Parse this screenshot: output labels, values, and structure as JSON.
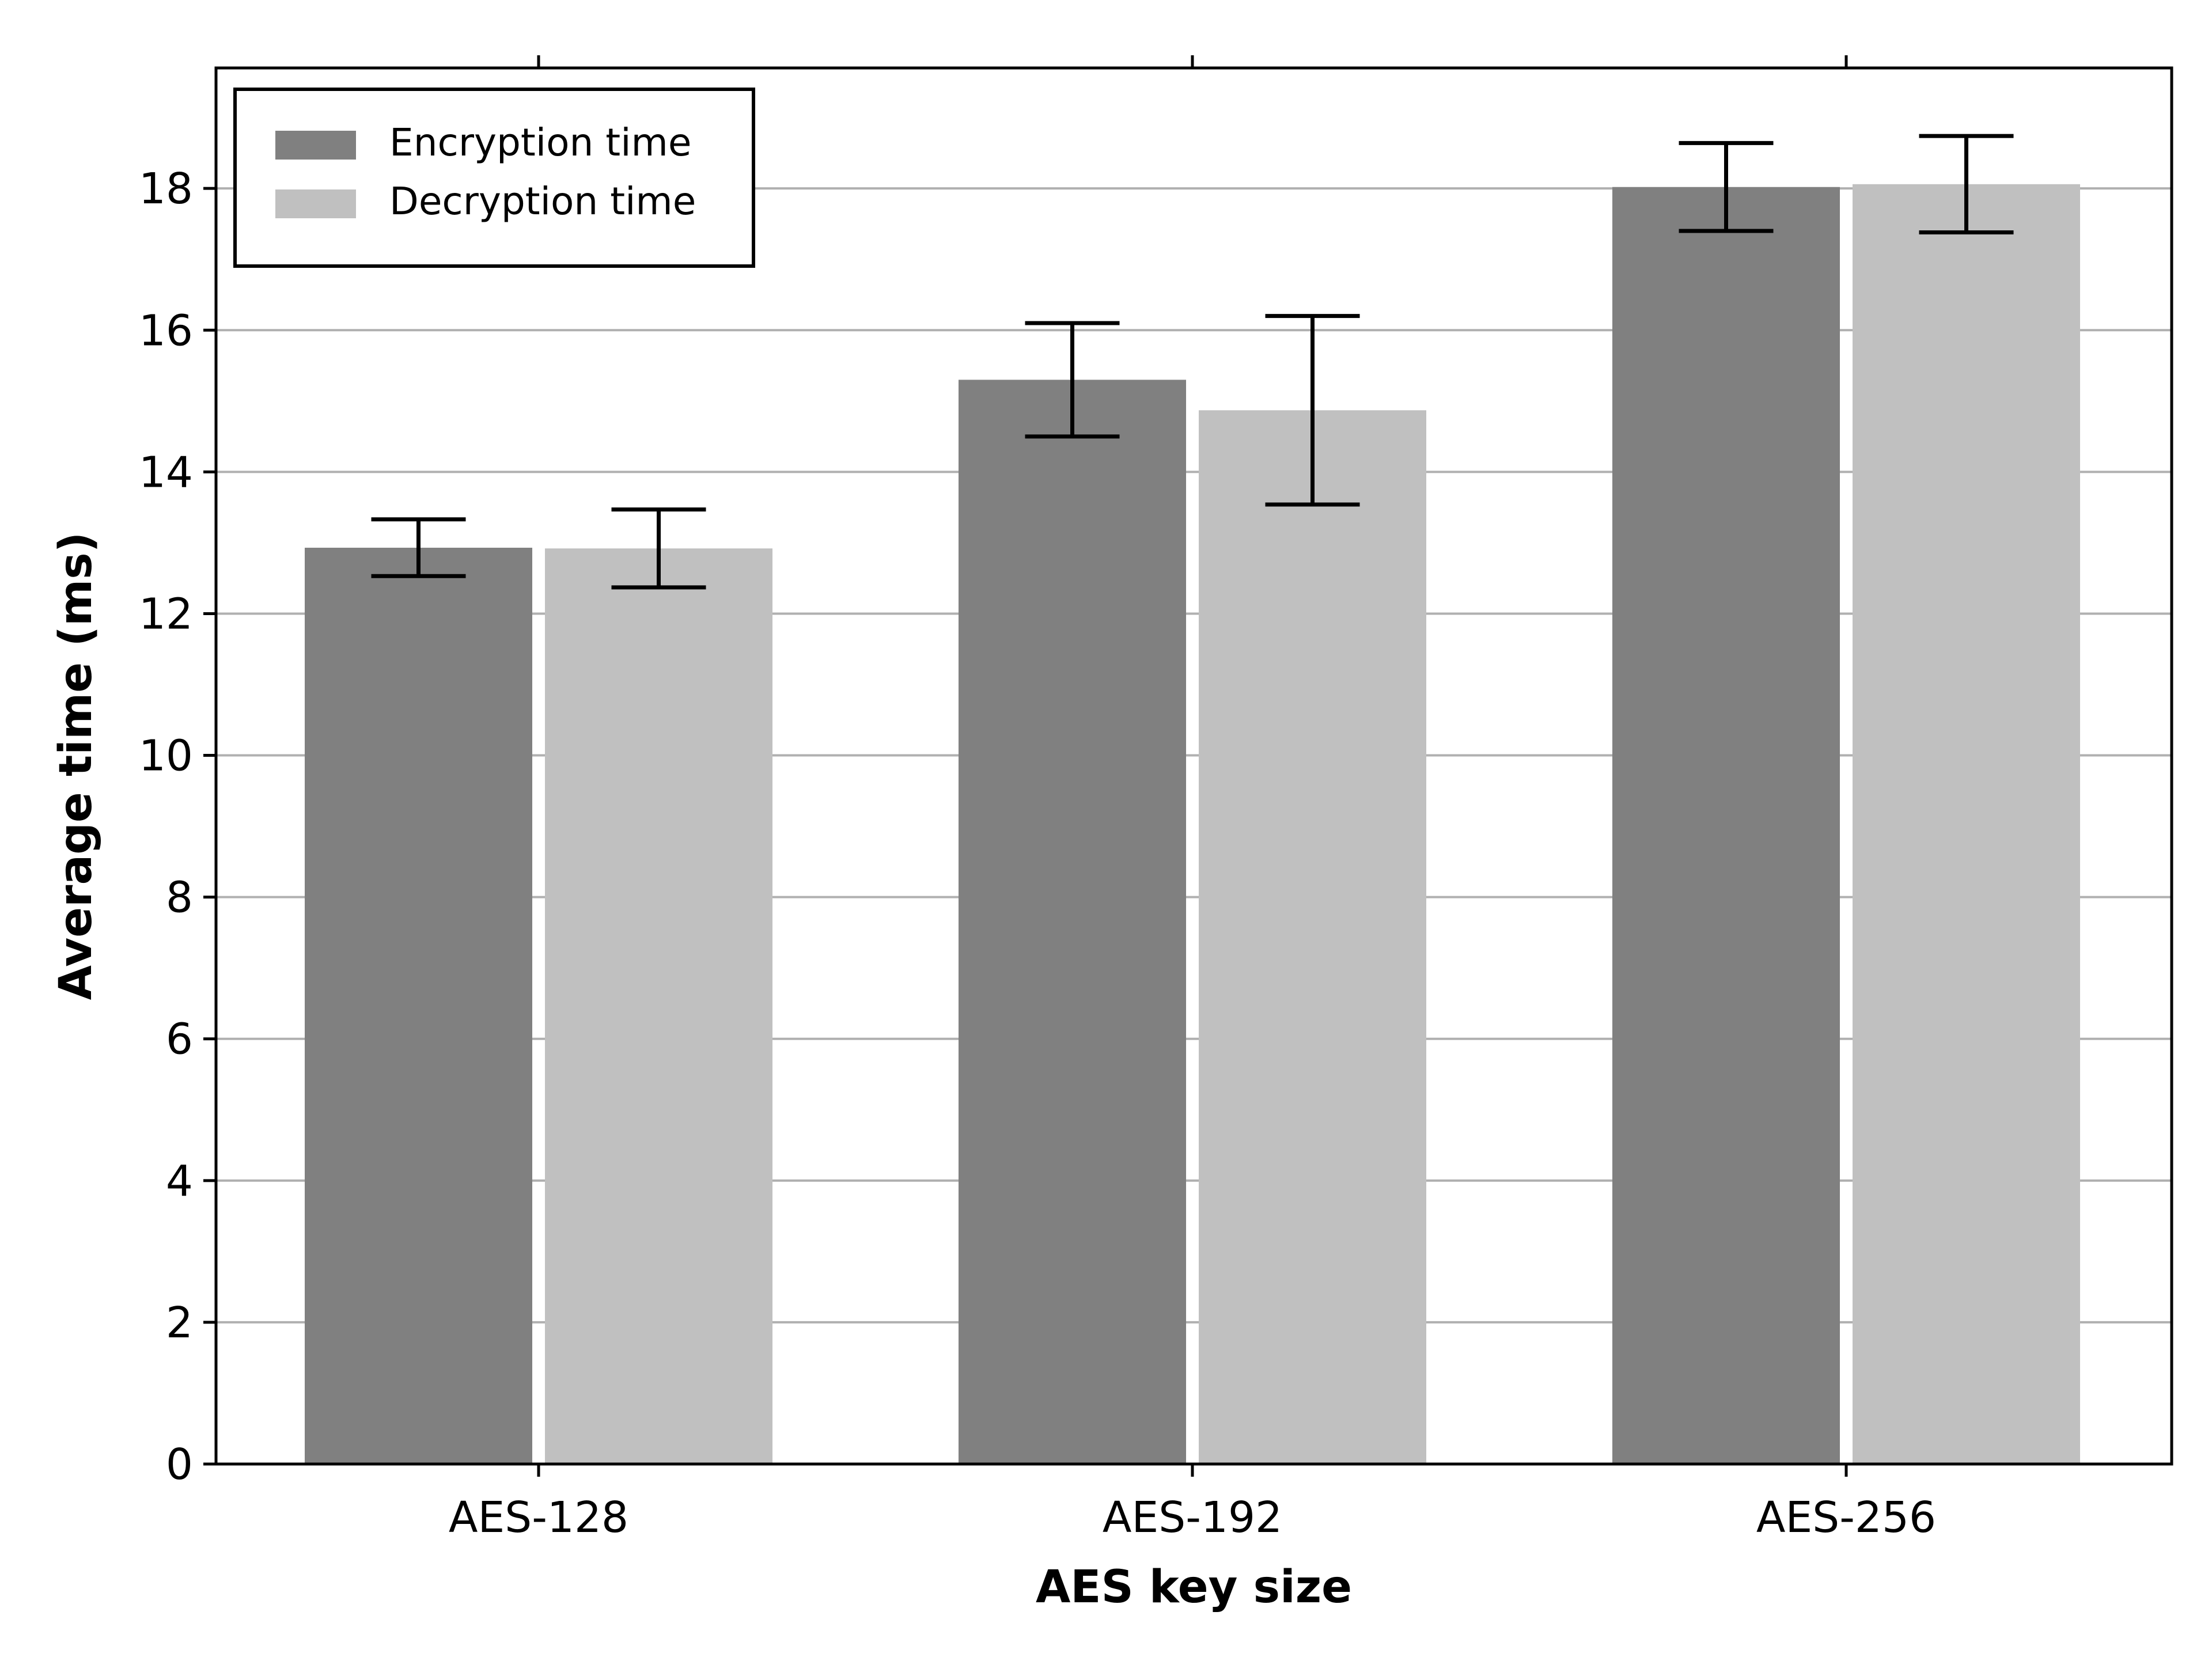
{
  "chart_data": {
    "type": "bar",
    "title": "",
    "xlabel": "AES key size",
    "ylabel": "Average time (ms)",
    "categories": [
      "AES-128",
      "AES-192",
      "AES-256"
    ],
    "series": [
      {
        "name": "Encryption time",
        "values": [
          12.93,
          15.3,
          18.02
        ],
        "errors": [
          0.4,
          0.8,
          0.62
        ],
        "color": "#808080"
      },
      {
        "name": "Decryption time",
        "values": [
          12.92,
          14.87,
          18.06
        ],
        "errors": [
          0.55,
          1.33,
          0.68
        ],
        "color": "#c0c0c0"
      }
    ],
    "ylim": [
      0,
      19.7
    ],
    "yticks": [
      0,
      2,
      4,
      6,
      8,
      10,
      12,
      14,
      16,
      18
    ],
    "grid": "horizontal",
    "legend_position": "top-left",
    "top_ticks": true
  }
}
